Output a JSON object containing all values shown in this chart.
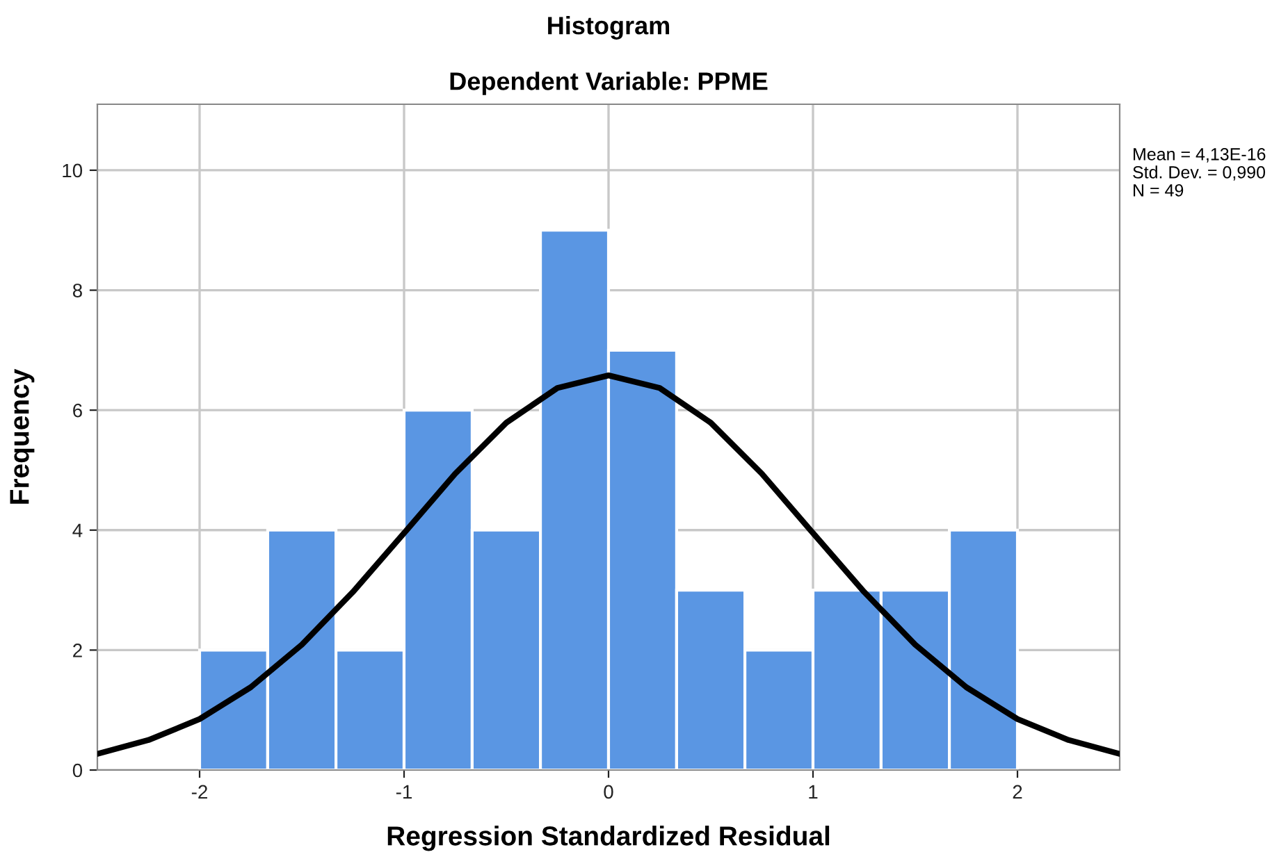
{
  "chart_data": {
    "type": "histogram",
    "title": "Histogram",
    "subtitle": "Dependent Variable: PPME",
    "xlabel": "Regression Standardized Residual",
    "ylabel": "Frequency",
    "bins": [
      -2,
      -1.667,
      -1.333,
      -1,
      -0.667,
      -0.333,
      0,
      0.333,
      0.667,
      1,
      1.333,
      1.667,
      2
    ],
    "values": [
      2,
      4,
      2,
      6,
      4,
      9,
      7,
      3,
      2,
      3,
      3,
      4
    ],
    "color": "#5a96e3",
    "series": [
      {
        "type": "line",
        "color": "#000000",
        "x": [
          -2.5,
          -2.25,
          -2,
          -1.75,
          -1.5,
          -1.25,
          -1,
          -0.75,
          -0.5,
          -0.25,
          0,
          0.25,
          0.5,
          0.75,
          1,
          1.25,
          1.5,
          1.75,
          2,
          2.25,
          2.5
        ],
        "values": [
          0.27,
          0.5,
          0.85,
          1.38,
          2.09,
          2.97,
          3.95,
          4.94,
          5.79,
          6.37,
          6.58,
          6.37,
          5.79,
          4.94,
          3.95,
          2.97,
          2.09,
          1.38,
          0.85,
          0.5,
          0.27
        ]
      }
    ],
    "xlim": [
      -2.5,
      2.5
    ],
    "ylim": [
      0,
      11.1
    ],
    "xticks": [
      -2,
      -1,
      0,
      1,
      2
    ],
    "yticks": [
      0,
      2,
      4,
      6,
      8,
      10
    ],
    "grid": true,
    "legend": false,
    "marker": "none",
    "line_style": "solid",
    "annotations": [
      "Mean = 4,13E-16",
      "Std. Dev. = 0,990",
      "N = 49"
    ]
  }
}
